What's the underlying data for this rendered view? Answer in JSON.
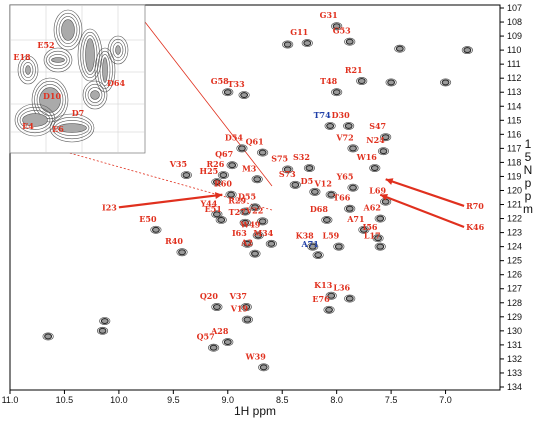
{
  "chart_data": {
    "type": "scatter",
    "subtype": "2D 1H-15N HSQC NMR spectrum",
    "xlabel": "1H ppm",
    "ylabel": "15N ppm",
    "xlim": [
      11.0,
      6.5
    ],
    "ylim": [
      107,
      134
    ],
    "x_ticks": [
      "11.0",
      "10.5",
      "10.0",
      "9.5",
      "9.0",
      "8.5",
      "8.0",
      "7.5",
      "7.0"
    ],
    "y_ticks": [
      "107",
      "108",
      "109",
      "110",
      "111",
      "112",
      "113",
      "114",
      "115",
      "116",
      "117",
      "118",
      "119",
      "120",
      "121",
      "122",
      "123",
      "124",
      "125",
      "126",
      "127",
      "128",
      "129",
      "130",
      "131",
      "132",
      "133",
      "134"
    ],
    "label_color": "#e0301e",
    "alt_label_color": "#1f3fa8",
    "peaks": [
      {
        "label": "G31",
        "x": 8.0,
        "y": 108.3
      },
      {
        "label": "G53",
        "x": 7.88,
        "y": 109.4
      },
      {
        "label": "G11",
        "x": 8.27,
        "y": 109.5
      },
      {
        "label": "",
        "x": 8.45,
        "y": 109.6
      },
      {
        "label": "",
        "x": 7.42,
        "y": 109.9
      },
      {
        "label": "",
        "x": 6.8,
        "y": 110.0
      },
      {
        "label": "R21",
        "x": 7.77,
        "y": 112.2
      },
      {
        "label": "T48",
        "x": 8.0,
        "y": 113.0
      },
      {
        "label": "",
        "x": 7.5,
        "y": 112.3
      },
      {
        "label": "",
        "x": 7.0,
        "y": 112.3
      },
      {
        "label": "G58",
        "x": 9.0,
        "y": 113.0
      },
      {
        "label": "T33",
        "x": 8.85,
        "y": 113.2
      },
      {
        "label": "D30",
        "x": 7.89,
        "y": 115.4
      },
      {
        "label": "T74",
        "x": 8.06,
        "y": 115.4
      },
      {
        "label": "N24",
        "x": 7.57,
        "y": 117.2
      },
      {
        "label": "S47",
        "x": 7.55,
        "y": 116.2
      },
      {
        "label": "V72",
        "x": 7.85,
        "y": 117.0
      },
      {
        "label": "D54",
        "x": 8.87,
        "y": 117.0
      },
      {
        "label": "Q61",
        "x": 8.68,
        "y": 117.3
      },
      {
        "label": "Q67",
        "x": 8.96,
        "y": 118.2
      },
      {
        "label": "W16",
        "x": 7.65,
        "y": 118.4
      },
      {
        "label": "R26",
        "x": 9.04,
        "y": 118.9
      },
      {
        "label": "M3",
        "x": 8.73,
        "y": 119.2
      },
      {
        "label": "S75",
        "x": 8.45,
        "y": 118.5
      },
      {
        "label": "S32",
        "x": 8.25,
        "y": 118.4
      },
      {
        "label": "V35",
        "x": 9.38,
        "y": 118.9
      },
      {
        "label": "H25",
        "x": 9.1,
        "y": 119.4
      },
      {
        "label": "S73",
        "x": 8.38,
        "y": 119.6
      },
      {
        "label": "D5",
        "x": 8.2,
        "y": 120.1
      },
      {
        "label": "Y65",
        "x": 7.85,
        "y": 119.8
      },
      {
        "label": "V12",
        "x": 8.05,
        "y": 120.3
      },
      {
        "label": "R60",
        "x": 8.97,
        "y": 120.3
      },
      {
        "label": "T66",
        "x": 7.88,
        "y": 121.3
      },
      {
        "label": "D55",
        "x": 8.75,
        "y": 121.2
      },
      {
        "label": "L69",
        "x": 7.55,
        "y": 120.8
      },
      {
        "label": "R29",
        "x": 8.84,
        "y": 121.5
      },
      {
        "label": "Y44",
        "x": 9.1,
        "y": 121.7
      },
      {
        "label": "E51",
        "x": 9.06,
        "y": 122.1
      },
      {
        "label": "D68",
        "x": 8.09,
        "y": 122.1
      },
      {
        "label": "A62",
        "x": 7.6,
        "y": 122.0
      },
      {
        "label": "T27",
        "x": 8.84,
        "y": 122.3
      },
      {
        "label": "V22",
        "x": 8.68,
        "y": 122.2
      },
      {
        "label": "A71",
        "x": 7.75,
        "y": 122.8
      },
      {
        "label": "E50",
        "x": 9.66,
        "y": 122.8
      },
      {
        "label": "W49",
        "x": 8.72,
        "y": 123.2
      },
      {
        "label": "I56",
        "x": 7.62,
        "y": 123.4
      },
      {
        "label": "I63",
        "x": 8.82,
        "y": 123.8
      },
      {
        "label": "M34",
        "x": 8.6,
        "y": 123.8
      },
      {
        "label": "K38",
        "x": 8.22,
        "y": 124.0
      },
      {
        "label": "L59",
        "x": 7.98,
        "y": 124.0
      },
      {
        "label": "L17",
        "x": 7.6,
        "y": 124.0
      },
      {
        "label": "A2",
        "x": 8.75,
        "y": 124.5
      },
      {
        "label": "R40",
        "x": 9.42,
        "y": 124.4
      },
      {
        "label": "A71",
        "x": 8.17,
        "y": 124.6
      },
      {
        "label": "K13",
        "x": 8.05,
        "y": 127.5
      },
      {
        "label": "L36",
        "x": 7.88,
        "y": 127.7
      },
      {
        "label": "E76",
        "x": 8.07,
        "y": 128.5
      },
      {
        "label": "Q20",
        "x": 9.1,
        "y": 128.3
      },
      {
        "label": "V37",
        "x": 8.83,
        "y": 128.3
      },
      {
        "label": "V19",
        "x": 8.82,
        "y": 129.2
      },
      {
        "label": "A28",
        "x": 9.0,
        "y": 130.8
      },
      {
        "label": "Q57",
        "x": 9.13,
        "y": 131.2
      },
      {
        "label": "W39",
        "x": 8.67,
        "y": 132.6
      },
      {
        "label": "",
        "x": 10.13,
        "y": 129.3
      },
      {
        "label": "",
        "x": 10.15,
        "y": 130.0
      },
      {
        "label": "",
        "x": 10.65,
        "y": 130.4
      }
    ],
    "arrow_labels": [
      {
        "label": "I23",
        "from": [
          10.0,
          121.2
        ],
        "to": [
          9.05,
          120.3
        ]
      },
      {
        "label": "R70",
        "from": [
          6.83,
          121.1
        ],
        "to": [
          7.55,
          119.2
        ]
      },
      {
        "label": "K46",
        "from": [
          6.83,
          122.6
        ],
        "to": [
          7.6,
          120.3
        ]
      }
    ],
    "inset_labels": [
      "E52",
      "E18",
      "D64",
      "D10",
      "D7",
      "E4",
      "E6"
    ]
  }
}
